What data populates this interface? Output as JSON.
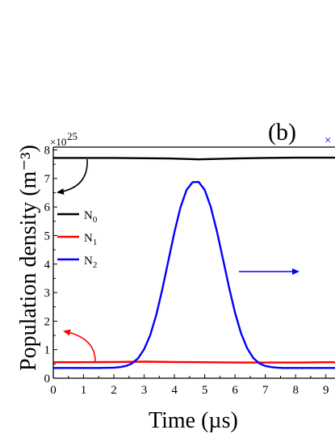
{
  "chart_data": {
    "type": "line",
    "panel_label": "(b)",
    "xlabel": "Time (µs)",
    "ylabel": "Population density (m⁻³)",
    "y_multiplier": "×10",
    "y_multiplier_exp": "25",
    "right_multiplier_partial": "×",
    "xlim": [
      0,
      9.3
    ],
    "ylim": [
      0,
      8.1
    ],
    "x_ticks": [
      "0",
      "1",
      "2",
      "3",
      "4",
      "5",
      "6",
      "7",
      "8",
      "9"
    ],
    "y_ticks": [
      "0",
      "1",
      "2",
      "3",
      "4",
      "5",
      "6",
      "7",
      "8"
    ],
    "legend": {
      "placement": "left",
      "entries": [
        {
          "base": "N",
          "sub": "0"
        },
        {
          "base": "N",
          "sub": "1"
        },
        {
          "base": "N",
          "sub": "2"
        }
      ]
    },
    "series": [
      {
        "name": "N0",
        "color": "#000000",
        "axis": "left",
        "x": [
          0,
          1,
          2,
          3,
          3.8,
          4.5,
          4.8,
          5.2,
          6,
          7,
          8,
          9,
          9.3
        ],
        "values": [
          7.72,
          7.72,
          7.72,
          7.71,
          7.7,
          7.68,
          7.67,
          7.68,
          7.7,
          7.72,
          7.73,
          7.73,
          7.73
        ]
      },
      {
        "name": "N1",
        "color": "#ff0000",
        "axis": "left",
        "x": [
          0,
          1,
          2,
          3,
          4,
          5,
          6,
          7,
          8,
          9,
          9.3
        ],
        "values": [
          0.56,
          0.56,
          0.57,
          0.58,
          0.57,
          0.56,
          0.55,
          0.55,
          0.55,
          0.56,
          0.56
        ]
      },
      {
        "name": "N2",
        "color": "#0000ff",
        "axis": "right",
        "x": [
          0,
          0.5,
          1,
          1.5,
          2,
          2.2,
          2.4,
          2.6,
          2.8,
          3,
          3.2,
          3.4,
          3.6,
          3.8,
          4,
          4.2,
          4.4,
          4.6,
          4.8,
          5,
          5.2,
          5.4,
          5.6,
          5.8,
          6,
          6.2,
          6.4,
          6.6,
          6.8,
          7,
          7.2,
          7.4,
          7.6,
          7.8,
          8,
          8.5,
          9,
          9.3
        ],
        "values": [
          0.36,
          0.36,
          0.36,
          0.36,
          0.37,
          0.39,
          0.43,
          0.52,
          0.7,
          1.02,
          1.51,
          2.22,
          3.12,
          4.12,
          5.12,
          5.99,
          6.6,
          6.87,
          6.88,
          6.6,
          6.0,
          5.16,
          4.18,
          3.19,
          2.29,
          1.57,
          1.05,
          0.71,
          0.52,
          0.43,
          0.39,
          0.37,
          0.36,
          0.36,
          0.36,
          0.36,
          0.36,
          0.36
        ]
      }
    ],
    "annotations": [
      {
        "type": "arrow",
        "color": "#000000",
        "points_to": "left-axis",
        "near_series": "N0"
      },
      {
        "type": "arrow",
        "color": "#ff0000",
        "points_to": "left-axis",
        "near_series": "N1"
      },
      {
        "type": "arrow",
        "color": "#0000ff",
        "points_to": "right-axis",
        "near_series": "N2"
      }
    ]
  }
}
